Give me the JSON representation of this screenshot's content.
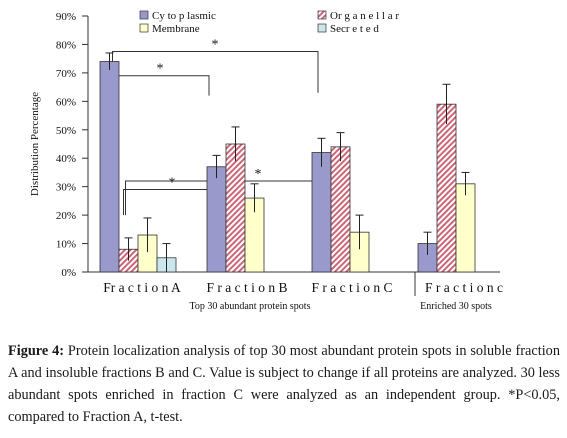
{
  "chart_data": {
    "type": "bar",
    "ylabel": "Distribution Percentage",
    "ylim": [
      0,
      90
    ],
    "y_ticks": [
      "0%",
      "10%",
      "20%",
      "30%",
      "40%",
      "50%",
      "60%",
      "70%",
      "80%",
      "90%"
    ],
    "legend": {
      "placement": "top-center",
      "items": [
        {
          "name": "Cy to p lasmic",
          "key": "cytoplasmic"
        },
        {
          "name": "Or g a n e l l a r",
          "key": "organellar"
        },
        {
          "name": "Membrane",
          "key": "membrane"
        },
        {
          "name": "Secr e t e d",
          "key": "secreted"
        }
      ]
    },
    "colors": {
      "cytoplasmic": "#9999cc",
      "organellar_stripe": "#cc6677",
      "membrane": "#ffffcc",
      "secreted": "#cce6ee",
      "axis": "#333333"
    },
    "groups": [
      {
        "label": "Fr a c t i o n   A",
        "values": {
          "cytoplasmic": 74,
          "organellar": 8,
          "membrane": 13,
          "secreted": 5
        },
        "errors": {
          "cytoplasmic": 3,
          "organellar": 4,
          "membrane": 6,
          "secreted": 5
        }
      },
      {
        "label": "F r a c t i o n B",
        "values": {
          "cytoplasmic": 37,
          "organellar": 45,
          "membrane": 26
        },
        "errors": {
          "cytoplasmic": 4,
          "organellar": 6,
          "membrane": 5
        }
      },
      {
        "label": "F r a c t i o n   C",
        "values": {
          "cytoplasmic": 42,
          "organellar": 44,
          "membrane": 14
        },
        "errors": {
          "cytoplasmic": 5,
          "organellar": 5,
          "membrane": 6
        }
      },
      {
        "label": "F r a c t i o n  c",
        "values": {
          "cytoplasmic": 10,
          "organellar": 59,
          "membrane": 31
        },
        "errors": {
          "cytoplasmic": 4,
          "organellar": 7,
          "membrane": 4
        }
      }
    ],
    "section_labels": [
      "Top 30  abundant protein  spots",
      "Enriched 30 spots"
    ],
    "significance": [
      {
        "from": "Fraction A cytoplasmic",
        "to": "Fraction B cytoplasmic",
        "mark": "*"
      },
      {
        "from": "Fraction A cytoplasmic",
        "to": "Fraction C cytoplasmic",
        "mark": "*"
      },
      {
        "from": "Fraction A organellar",
        "to": "Fraction B organellar",
        "mark": "*"
      },
      {
        "from": "Fraction A organellar",
        "to": "Fraction C organellar",
        "mark": "*"
      }
    ]
  },
  "caption": {
    "label": "Figure 4:",
    "text": "Protein localization analysis of top 30 most abundant protein spots in soluble fraction A and insoluble fractions B and C. Value is subject to change if all proteins are analyzed. 30 less abundant spots enriched in fraction C were analyzed as an independent group. *P<0.05, compared to Fraction A, t-test."
  }
}
